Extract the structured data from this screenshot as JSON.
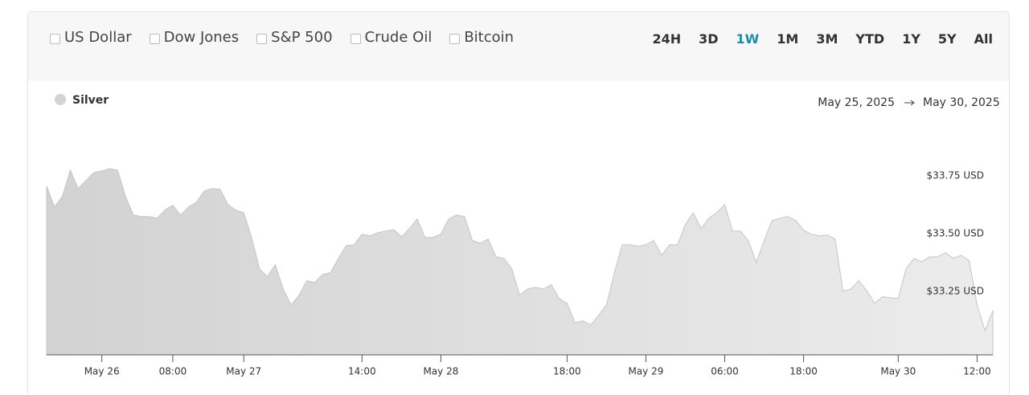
{
  "controls": {
    "comparisons": [
      "US Dollar",
      "Dow Jones",
      "S&P 500",
      "Crude Oil",
      "Bitcoin"
    ],
    "ranges": [
      "24H",
      "3D",
      "1W",
      "1M",
      "3M",
      "YTD",
      "1Y",
      "5Y",
      "All"
    ],
    "active_range": "1W"
  },
  "date_range": {
    "start": "May 25, 2025",
    "end": "May 30, 2025"
  },
  "chart_data": {
    "type": "area",
    "categories": [
      null,
      null,
      null,
      null,
      null,
      null,
      null,
      "May 26",
      null,
      null,
      null,
      null,
      null,
      null,
      null,
      null,
      "08:00",
      null,
      null,
      null,
      null,
      null,
      null,
      null,
      null,
      "May 27",
      null,
      null,
      null,
      null,
      null,
      null,
      null,
      null,
      null,
      null,
      null,
      null,
      null,
      null,
      "14:00",
      null,
      null,
      null,
      null,
      null,
      null,
      null,
      null,
      null,
      "May 28",
      null,
      null,
      null,
      null,
      null,
      null,
      null,
      null,
      null,
      null,
      null,
      null,
      null,
      null,
      null,
      "18:00",
      null,
      null,
      null,
      null,
      null,
      null,
      null,
      null,
      null,
      "May 29",
      null,
      null,
      null,
      null,
      null,
      null,
      null,
      null,
      null,
      "06:00",
      null,
      null,
      null,
      null,
      null,
      null,
      null,
      null,
      null,
      "18:00",
      null,
      null,
      null,
      null,
      null,
      null,
      null,
      null,
      null,
      null,
      null,
      "May 30",
      null,
      null,
      null,
      null,
      null,
      null,
      null,
      null,
      null,
      "12:00",
      null,
      null
    ],
    "series": [
      {
        "name": "Silver",
        "color": "#d3d3d3",
        "values": [
          33.705,
          33.615,
          33.66,
          33.774,
          33.694,
          33.729,
          33.764,
          33.771,
          33.781,
          33.774,
          33.66,
          33.58,
          33.573,
          33.573,
          33.566,
          33.601,
          33.622,
          33.58,
          33.615,
          33.635,
          33.684,
          33.694,
          33.691,
          33.625,
          33.601,
          33.59,
          33.483,
          33.347,
          33.313,
          33.365,
          33.26,
          33.191,
          33.233,
          33.295,
          33.288,
          33.323,
          33.33,
          33.392,
          33.448,
          33.451,
          33.497,
          33.49,
          33.503,
          33.51,
          33.517,
          33.486,
          33.521,
          33.563,
          33.483,
          33.483,
          33.497,
          33.563,
          33.58,
          33.573,
          33.469,
          33.458,
          33.476,
          33.399,
          33.392,
          33.347,
          33.233,
          33.26,
          33.267,
          33.26,
          33.278,
          33.219,
          33.198,
          33.115,
          33.122,
          33.104,
          33.146,
          33.191,
          33.33,
          33.451,
          33.451,
          33.444,
          33.451,
          33.469,
          33.406,
          33.451,
          33.451,
          33.538,
          33.59,
          33.521,
          33.566,
          33.59,
          33.625,
          33.51,
          33.51,
          33.469,
          33.375,
          33.469,
          33.556,
          33.566,
          33.573,
          33.556,
          33.514,
          33.497,
          33.49,
          33.493,
          33.476,
          33.25,
          33.26,
          33.295,
          33.253,
          33.198,
          33.226,
          33.222,
          33.219,
          33.347,
          33.392,
          33.378,
          33.399,
          33.399,
          33.417,
          33.392,
          33.406,
          33.382,
          33.191,
          33.08,
          33.167
        ]
      }
    ],
    "ylim": [
      32.975,
      33.85
    ],
    "yticks": [
      {
        "value": 33.25,
        "label": "$33.25 USD"
      },
      {
        "value": 33.5,
        "label": "$33.50 USD"
      },
      {
        "value": 33.75,
        "label": "$33.75 USD"
      }
    ],
    "grid": false
  }
}
